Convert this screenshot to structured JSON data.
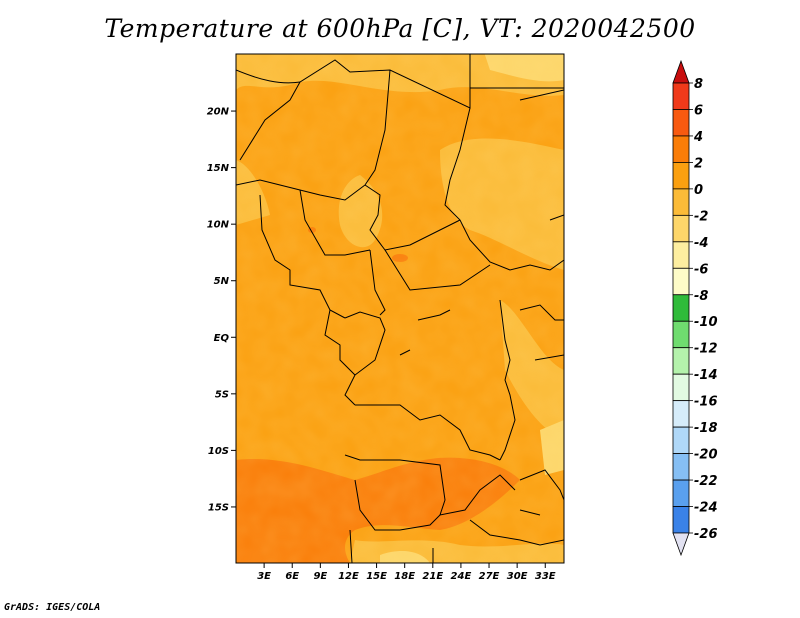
{
  "title": "Temperature at 600hPa [C], VT: 2020042500",
  "credit": "GrADS: IGES/COLA",
  "map": {
    "lat_labels": [
      "20N",
      "15N",
      "10N",
      "5N",
      "EQ",
      "5S",
      "10S",
      "15S"
    ],
    "lon_labels": [
      "3E",
      "6E",
      "9E",
      "12E",
      "15E",
      "18E",
      "21E",
      "24E",
      "27E",
      "30E",
      "33E"
    ],
    "lat_values": [
      20,
      15,
      10,
      5,
      0,
      -5,
      -10,
      -15
    ],
    "lon_values": [
      3,
      6,
      9,
      12,
      15,
      18,
      21,
      24,
      27,
      30,
      33
    ],
    "lon_range": [
      0,
      35
    ],
    "lat_range": [
      -20,
      25
    ]
  },
  "colorbar": {
    "labels": [
      "8",
      "6",
      "4",
      "2",
      "0",
      "-2",
      "-4",
      "-6",
      "-8",
      "-10",
      "-12",
      "-14",
      "-16",
      "-18",
      "-20",
      "-22",
      "-24",
      "-26"
    ],
    "colors": [
      "#f03a1a",
      "#f85a10",
      "#fa7d08",
      "#fba010",
      "#fbbb38",
      "#fdd66a",
      "#fdeea0",
      "#fefcc8",
      "#2fbb3a",
      "#6fdc6f",
      "#b4f2ac",
      "#e2fae2",
      "#d6ecfa",
      "#b0d8f8",
      "#86bff4",
      "#5aa0ee",
      "#3a82e8",
      "#1f62da",
      "#123ebe",
      "#0a1e8c",
      "#e2e2f2"
    ],
    "top_color": "#c80e0e",
    "bottom_color": "#e2e2f2"
  }
}
